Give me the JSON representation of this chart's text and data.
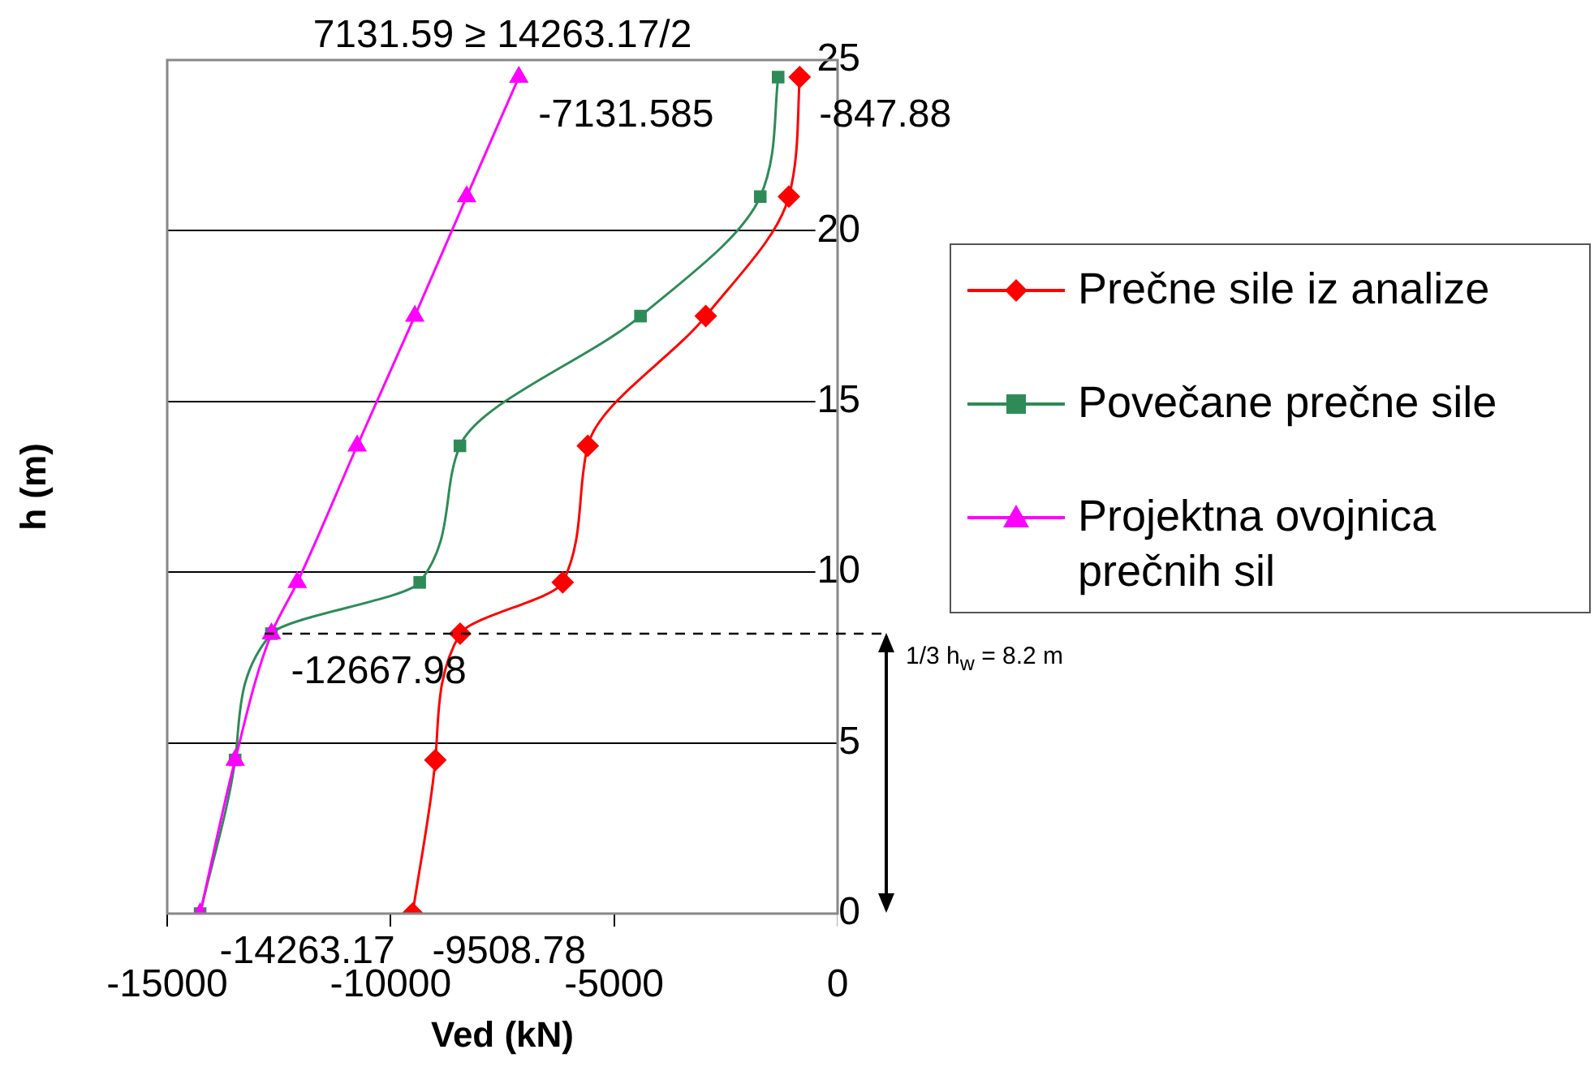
{
  "chart_data": {
    "type": "line",
    "xlabel": "Ved (kN)",
    "ylabel": "h (m)",
    "xlim": [
      -15000,
      0
    ],
    "xticks": [
      -15000,
      -10000,
      -5000,
      0
    ],
    "ylim": [
      0,
      25
    ],
    "yticks": [
      0,
      5,
      10,
      15,
      20,
      25
    ],
    "grid": "y",
    "legend": "right",
    "series": [
      {
        "name": "Prečne sile iz analize",
        "color": "#ff0000",
        "marker": "diamond",
        "x": [
          -9508.78,
          -9000,
          -8445,
          -6150,
          -5590,
          -2950,
          -1090,
          -847.88
        ],
        "values": [
          0,
          4.5,
          8.2,
          9.7,
          13.7,
          17.5,
          21,
          24.5
        ]
      },
      {
        "name": "Povečane prečne sile",
        "color": "#2e8b57",
        "marker": "square",
        "x": [
          -14263.17,
          -13480,
          -12667.98,
          -9350,
          -8450,
          -4410,
          -1730,
          -1330
        ],
        "values": [
          0,
          4.5,
          8.2,
          9.7,
          13.7,
          17.5,
          21,
          24.5
        ]
      },
      {
        "name": "Projektna ovojnica prečnih sil",
        "color": "#ff00ff",
        "marker": "triangle",
        "x": [
          -14263.17,
          -13480,
          -12667.98,
          -12090,
          -10750,
          -9460,
          -8300,
          -7131.585
        ],
        "values": [
          0,
          4.5,
          8.2,
          9.7,
          13.7,
          17.5,
          21,
          24.5
        ]
      }
    ],
    "annotations": [
      "7131.59 ≥ 14263.17/2",
      {
        "text": "-7131.585",
        "x": -7131.585,
        "y": 24.5
      },
      {
        "text": "-847.88",
        "x": -847.88,
        "y": 24.5
      },
      {
        "text": "-12667.98",
        "x": -12667.98,
        "y": 8.2
      },
      {
        "text": "-14263.17",
        "x": -14263.17,
        "y": 0
      },
      {
        "text": "-9508.78",
        "x": -9508.78,
        "y": 0
      }
    ],
    "ref_lines": [
      {
        "axis": "y",
        "value": 8.2,
        "label": "1/3 h$_{w}$ = 8.2 m",
        "line_style": "dashed",
        "color": "#000000"
      }
    ]
  }
}
